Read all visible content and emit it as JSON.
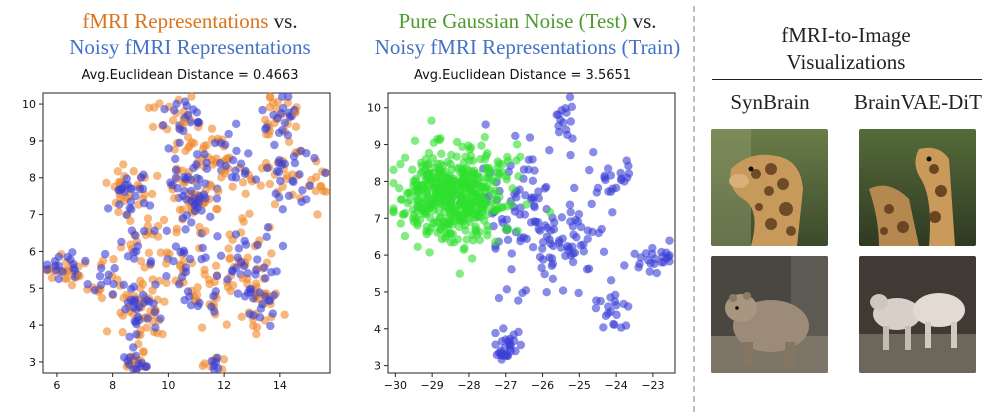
{
  "panels": [
    {
      "title_line1_colored": "fMRI Representations",
      "title_line1_suffix": "vs.",
      "title_line2": "Noisy fMRI Representations",
      "distance_label": "Avg.Euclidean Distance = 0.4663"
    },
    {
      "title_line1_colored": "Pure Gaussian Noise (Test)",
      "title_line1_suffix": "vs.",
      "title_line2": "Noisy fMRI Representations (Train)",
      "distance_label": "Avg.Euclidean Distance = 3.5651"
    }
  ],
  "visualization": {
    "title_line1": "fMRI-to-Image",
    "title_line2": "Visualizations",
    "col1": "SynBrain",
    "col2": "BrainVAE-DiT"
  },
  "colors": {
    "orange": "#F0892A",
    "blue": "#3A3FD6",
    "green": "#2EE02E"
  },
  "chart_data": [
    {
      "type": "scatter",
      "title": "Avg.Euclidean Distance = 0.4663",
      "xlim": [
        5.5,
        15.8
      ],
      "ylim": [
        2.7,
        10.3
      ],
      "xticks": [
        "6",
        "8",
        "10",
        "12",
        "14"
      ],
      "yticks": [
        "3",
        "4",
        "5",
        "6",
        "7",
        "8",
        "9",
        "10"
      ],
      "series": [
        {
          "name": "fMRI Representations",
          "color": "#F0892A"
        },
        {
          "name": "Noisy fMRI Representations",
          "color": "#3A3FD6"
        }
      ],
      "clusters": [
        {
          "cx": 6.2,
          "cy": 5.5,
          "sx": 0.4,
          "sy": 0.2,
          "n": 22
        },
        {
          "cx": 7.6,
          "cy": 5.2,
          "sx": 0.5,
          "sy": 0.3,
          "n": 14
        },
        {
          "cx": 8.6,
          "cy": 7.6,
          "sx": 0.45,
          "sy": 0.4,
          "n": 28
        },
        {
          "cx": 9.3,
          "cy": 6.2,
          "sx": 0.55,
          "sy": 0.6,
          "n": 24
        },
        {
          "cx": 9.0,
          "cy": 4.3,
          "sx": 0.5,
          "sy": 0.5,
          "n": 40
        },
        {
          "cx": 8.9,
          "cy": 3.0,
          "sx": 0.25,
          "sy": 0.15,
          "n": 16
        },
        {
          "cx": 10.4,
          "cy": 9.6,
          "sx": 0.5,
          "sy": 0.3,
          "n": 22
        },
        {
          "cx": 10.8,
          "cy": 8.2,
          "sx": 0.5,
          "sy": 0.5,
          "n": 30
        },
        {
          "cx": 11.0,
          "cy": 7.4,
          "sx": 0.35,
          "sy": 0.3,
          "n": 26
        },
        {
          "cx": 11.7,
          "cy": 8.7,
          "sx": 0.35,
          "sy": 0.4,
          "n": 16
        },
        {
          "cx": 10.6,
          "cy": 5.6,
          "sx": 0.6,
          "sy": 0.6,
          "n": 22
        },
        {
          "cx": 12.7,
          "cy": 5.8,
          "sx": 0.7,
          "sy": 0.5,
          "n": 36
        },
        {
          "cx": 12.4,
          "cy": 8.1,
          "sx": 0.4,
          "sy": 0.3,
          "n": 10
        },
        {
          "cx": 13.9,
          "cy": 9.6,
          "sx": 0.35,
          "sy": 0.35,
          "n": 22
        },
        {
          "cx": 14.5,
          "cy": 8.0,
          "sx": 0.6,
          "sy": 0.5,
          "n": 36
        },
        {
          "cx": 13.3,
          "cy": 4.6,
          "sx": 0.35,
          "sy": 0.4,
          "n": 26
        },
        {
          "cx": 11.6,
          "cy": 3.0,
          "sx": 0.2,
          "sy": 0.2,
          "n": 8
        },
        {
          "cx": 11.4,
          "cy": 4.7,
          "sx": 0.35,
          "sy": 0.3,
          "n": 10
        }
      ]
    },
    {
      "type": "scatter",
      "title": "Avg.Euclidean Distance = 3.5651",
      "xlim": [
        -30.2,
        -22.4
      ],
      "ylim": [
        2.8,
        10.4
      ],
      "xticks": [
        "-30",
        "-29",
        "-28",
        "-27",
        "-26",
        "-25",
        "-24",
        "-23"
      ],
      "yticks": [
        "3",
        "4",
        "5",
        "6",
        "7",
        "8",
        "9",
        "10"
      ],
      "series": [
        {
          "name": "Pure Gaussian Noise (Test)",
          "color": "#2EE02E"
        },
        {
          "name": "Noisy fMRI Representations (Train)",
          "color": "#3A3FD6"
        }
      ],
      "clusters_noise": [
        {
          "cx": -28.4,
          "cy": 7.6,
          "sx": 0.75,
          "sy": 0.65,
          "n": 480
        }
      ],
      "clusters_fmri": [
        {
          "cx": -26.6,
          "cy": 7.4,
          "sx": 0.6,
          "sy": 0.8,
          "n": 70
        },
        {
          "cx": -25.4,
          "cy": 9.7,
          "sx": 0.15,
          "sy": 0.35,
          "n": 16
        },
        {
          "cx": -24.1,
          "cy": 8.1,
          "sx": 0.3,
          "sy": 0.3,
          "n": 22
        },
        {
          "cx": -25.4,
          "cy": 6.4,
          "sx": 0.5,
          "sy": 0.5,
          "n": 60
        },
        {
          "cx": -22.9,
          "cy": 5.9,
          "sx": 0.35,
          "sy": 0.2,
          "n": 24
        },
        {
          "cx": -24.2,
          "cy": 4.5,
          "sx": 0.25,
          "sy": 0.35,
          "n": 20
        },
        {
          "cx": -27.0,
          "cy": 3.5,
          "sx": 0.2,
          "sy": 0.25,
          "n": 30
        },
        {
          "cx": -26.5,
          "cy": 4.9,
          "sx": 0.5,
          "sy": 0.3,
          "n": 6
        }
      ]
    }
  ]
}
